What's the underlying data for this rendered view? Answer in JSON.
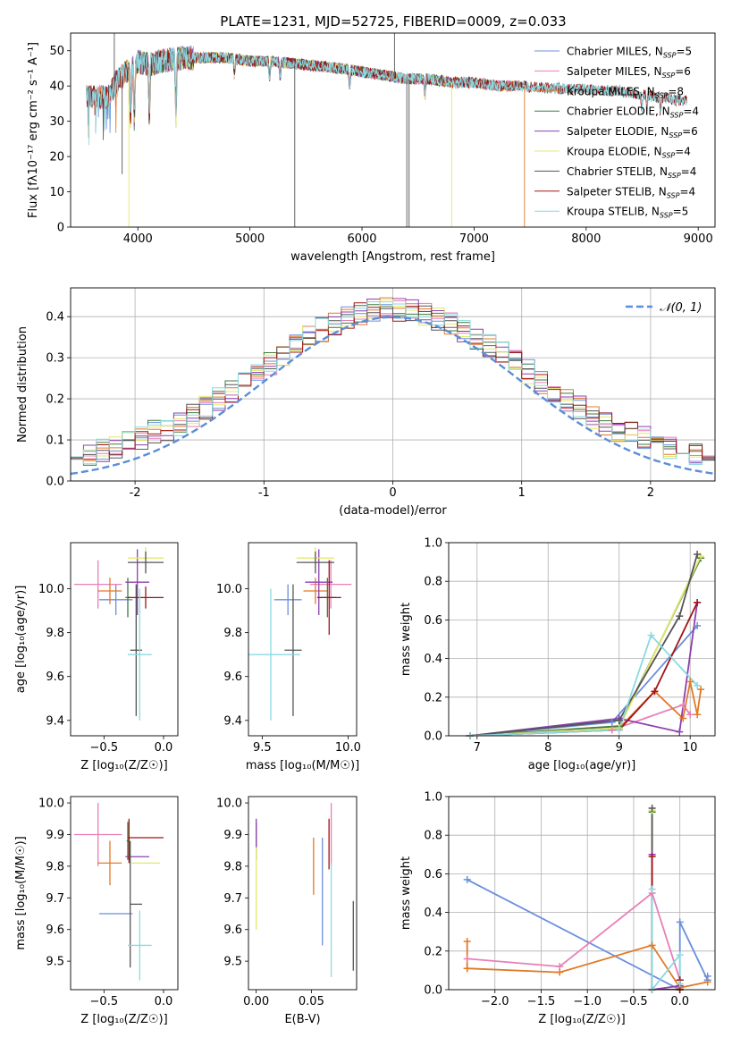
{
  "colors": {
    "cm": "#6a8fdb",
    "sm": "#e87fb6",
    "km": "#e17a28",
    "ce": "#3f7a3f",
    "se": "#8e3fae",
    "ke": "#e4e86b",
    "cs": "#555555",
    "ss": "#a01515",
    "ks": "#8ad9e0",
    "gauss": "#5b8ed8"
  },
  "figure_title": "PLATE=1231, MJD=52725, FIBERID=0009, z=0.033",
  "chart_data": [
    {
      "type": "line",
      "id": "spectrum",
      "xlabel": "wavelength [Angstrom, rest frame]",
      "ylabel": "Flux [fλ10⁻¹⁷ erg cm⁻² s⁻¹ A⁻¹]",
      "xlim": [
        3400,
        9150
      ],
      "ylim": [
        0,
        55
      ],
      "xticks": [
        4000,
        5000,
        6000,
        7000,
        8000,
        9000
      ],
      "yticks": [
        0,
        10,
        20,
        30,
        40,
        50
      ],
      "grid": false,
      "legend_position": "top-right",
      "continuum": {
        "x": [
          3750,
          3800,
          3900,
          4000,
          4100,
          4200,
          4400,
          4600,
          4800,
          5000,
          5200,
          5500,
          5800,
          6000,
          6200,
          6400,
          6600,
          6800,
          7000,
          7200,
          7400,
          7600,
          8000,
          8300,
          8600,
          8800,
          9000
        ],
        "y": [
          37,
          41,
          44,
          47,
          46,
          47,
          48,
          48,
          48,
          47,
          47,
          46,
          45,
          44,
          43,
          42,
          42,
          41,
          41,
          40,
          40,
          39.5,
          39,
          38.5,
          37,
          36,
          35.5
        ]
      },
      "series": [
        {
          "name": "Chabrier MILES, N_SSP=5",
          "label_text": "Chabrier MILES, N",
          "label_sub": "SSP",
          "label_tail": "=5",
          "color_key": "cm",
          "x_range": [
            3540,
            7400
          ]
        },
        {
          "name": "Salpeter MILES, N_SSP=6",
          "label_text": "Salpeter MILES, N",
          "label_sub": "SSP",
          "label_tail": "=6",
          "color_key": "sm",
          "x_range": [
            3540,
            7400
          ]
        },
        {
          "name": "Kroupa MILES, N_SSP=8",
          "label_text": "Kroupa MILES, N",
          "label_sub": "SSP",
          "label_tail": "=8",
          "color_key": "km",
          "x_range": [
            3540,
            7410
          ]
        },
        {
          "name": "Chabrier ELODIE, N_SSP=4",
          "label_text": "Chabrier ELODIE, N",
          "label_sub": "SSP",
          "label_tail": "=4",
          "color_key": "ce",
          "x_range": [
            3900,
            6790
          ]
        },
        {
          "name": "Salpeter ELODIE, N_SSP=6",
          "label_text": "Salpeter ELODIE, N",
          "label_sub": "SSP",
          "label_tail": "=6",
          "color_key": "se",
          "x_range": [
            3900,
            6790
          ]
        },
        {
          "name": "Kroupa ELODIE, N_SSP=4",
          "label_text": "Kroupa ELODIE, N",
          "label_sub": "SSP",
          "label_tail": "=4",
          "color_key": "ke",
          "x_range": [
            3900,
            6790
          ]
        },
        {
          "name": "Chabrier STELIB, N_SSP=4",
          "label_text": "Chabrier STELIB, N",
          "label_sub": "SSP",
          "label_tail": "=4",
          "color_key": "cs",
          "x_range": [
            3540,
            8900
          ]
        },
        {
          "name": "Salpeter STELIB, N_SSP=4",
          "label_text": "Salpeter STELIB, N",
          "label_sub": "SSP",
          "label_tail": "=4",
          "color_key": "ss",
          "x_range": [
            3540,
            8900
          ]
        },
        {
          "name": "Kroupa STELIB, N_SSP=5",
          "label_text": "Kroupa STELIB, N",
          "label_sub": "SSP",
          "label_tail": "=5",
          "color_key": "ks",
          "x_range": [
            3540,
            8900
          ]
        }
      ]
    },
    {
      "type": "histogram",
      "id": "residuals",
      "xlabel": "(data-model)/error",
      "ylabel": "Normed distribution",
      "xlim": [
        -2.5,
        2.5
      ],
      "ylim": [
        0,
        0.47
      ],
      "xticks": [
        -2,
        -1,
        0,
        1,
        2
      ],
      "yticks": [
        0.0,
        0.1,
        0.2,
        0.3,
        0.4
      ],
      "grid": true,
      "legend_position": "top-right",
      "bin_width": 0.1,
      "reference_curve": {
        "name": "𝒩(0, 1)",
        "type": "gaussian",
        "mean": 0,
        "sigma": 1
      },
      "series_color_keys": [
        "cm",
        "sm",
        "km",
        "ce",
        "se",
        "ke",
        "cs",
        "ss",
        "ks"
      ]
    },
    {
      "type": "errorbar",
      "id": "age-vs-Z",
      "xlabel": "Z [log₁₀(Z/Z☉)]",
      "ylabel": "age  [log₁₀(age/yr)]",
      "xlim": [
        -0.78,
        0.12
      ],
      "ylim": [
        9.33,
        10.21
      ],
      "xticks": [
        -0.5,
        0.0
      ],
      "xtick_labels": [
        "−0.5",
        "0.0"
      ],
      "yticks": [
        9.4,
        9.6,
        9.8,
        10.0
      ],
      "grid": false,
      "points": [
        {
          "color_key": "cm",
          "x": -0.4,
          "xerr": 0.14,
          "y": 9.95,
          "yerr": 0.07
        },
        {
          "color_key": "sm",
          "x": -0.55,
          "xerr": 0.2,
          "y": 10.02,
          "yerr": 0.11
        },
        {
          "color_key": "km",
          "x": -0.45,
          "xerr": 0.1,
          "y": 9.99,
          "yerr": 0.06
        },
        {
          "color_key": "ce",
          "x": -0.3,
          "xerr": 0.02,
          "y": 9.96,
          "yerr": 0.09
        },
        {
          "color_key": "se",
          "x": -0.22,
          "xerr": 0.1,
          "y": 10.03,
          "yerr": 0.15
        },
        {
          "color_key": "ke",
          "x": -0.15,
          "xerr": 0.15,
          "y": 10.14,
          "yerr": 0.05
        },
        {
          "color_key": "cs",
          "x": -0.15,
          "xerr": 0.15,
          "y": 10.12,
          "yerr": 0.05
        },
        {
          "color_key": "cs",
          "x": -0.23,
          "xerr": 0.05,
          "y": 9.72,
          "yerr": 0.3
        },
        {
          "color_key": "ss",
          "x": -0.15,
          "xerr": 0.15,
          "y": 9.96,
          "yerr": 0.05
        },
        {
          "color_key": "ks",
          "x": -0.2,
          "xerr": 0.1,
          "y": 9.7,
          "yerr": 0.3
        }
      ]
    },
    {
      "type": "errorbar",
      "id": "age-vs-mass",
      "xlabel": "mass [log₁₀(M/M☉)]",
      "xlim": [
        9.42,
        10.05
      ],
      "ylim": [
        9.33,
        10.21
      ],
      "xticks": [
        9.5,
        10.0
      ],
      "xtick_labels": [
        "9.5",
        "10.0"
      ],
      "yticks": [
        9.4,
        9.6,
        9.8,
        10.0
      ],
      "grid": false,
      "points": [
        {
          "color_key": "cm",
          "x": 9.65,
          "xerr": 0.08,
          "y": 9.95,
          "yerr": 0.07
        },
        {
          "color_key": "sm",
          "x": 9.9,
          "xerr": 0.12,
          "y": 10.02,
          "yerr": 0.11
        },
        {
          "color_key": "km",
          "x": 9.81,
          "xerr": 0.07,
          "y": 9.99,
          "yerr": 0.06
        },
        {
          "color_key": "ce",
          "x": 9.88,
          "xerr": 0.05,
          "y": 9.96,
          "yerr": 0.09
        },
        {
          "color_key": "se",
          "x": 9.83,
          "xerr": 0.08,
          "y": 10.03,
          "yerr": 0.15
        },
        {
          "color_key": "ke",
          "x": 9.81,
          "xerr": 0.11,
          "y": 10.14,
          "yerr": 0.05
        },
        {
          "color_key": "cs",
          "x": 9.81,
          "xerr": 0.11,
          "y": 10.12,
          "yerr": 0.05
        },
        {
          "color_key": "cs",
          "x": 9.68,
          "xerr": 0.05,
          "y": 9.72,
          "yerr": 0.3
        },
        {
          "color_key": "ss",
          "x": 9.89,
          "xerr": 0.07,
          "y": 9.96,
          "yerr": 0.17
        },
        {
          "color_key": "ks",
          "x": 9.55,
          "xerr": 0.17,
          "y": 9.7,
          "yerr": 0.3
        }
      ]
    },
    {
      "type": "line",
      "id": "weight-vs-age",
      "xlabel": "age  [log₁₀(age/yr)]",
      "ylabel": "mass weight",
      "xlim": [
        6.6,
        10.35
      ],
      "ylim": [
        0,
        1
      ],
      "xticks": [
        7,
        8,
        9,
        10
      ],
      "yticks": [
        0.0,
        0.2,
        0.4,
        0.6,
        0.8,
        1.0
      ],
      "grid": true,
      "series": [
        {
          "color_key": "cm",
          "x": [
            6.9,
            8.9,
            10.1
          ],
          "y": [
            0.0,
            0.07,
            0.57
          ]
        },
        {
          "color_key": "sm",
          "x": [
            6.9,
            8.9,
            9.9,
            10.0
          ],
          "y": [
            0.0,
            0.03,
            0.16,
            0.11
          ]
        },
        {
          "color_key": "km",
          "x": [
            6.9,
            9.0,
            9.5,
            9.9,
            10.0,
            10.1,
            10.15
          ],
          "y": [
            0.0,
            0.04,
            0.23,
            0.09,
            0.28,
            0.11,
            0.24
          ]
        },
        {
          "color_key": "ce",
          "x": [
            6.9,
            9.0,
            10.15
          ],
          "y": [
            0.0,
            0.05,
            0.92
          ]
        },
        {
          "color_key": "se",
          "x": [
            6.9,
            9.0,
            9.85,
            10.1
          ],
          "y": [
            0.0,
            0.09,
            0.02,
            0.69
          ]
        },
        {
          "color_key": "ke",
          "x": [
            6.9,
            9.0,
            10.15
          ],
          "y": [
            0.0,
            0.04,
            0.93
          ]
        },
        {
          "color_key": "cs",
          "x": [
            6.9,
            9.0,
            9.85,
            10.1
          ],
          "y": [
            0.0,
            0.08,
            0.62,
            0.94
          ]
        },
        {
          "color_key": "ss",
          "x": [
            6.9,
            9.0,
            9.5,
            10.1
          ],
          "y": [
            0.0,
            0.03,
            0.23,
            0.69
          ]
        },
        {
          "color_key": "ks",
          "x": [
            6.9,
            9.0,
            9.45,
            10.1
          ],
          "y": [
            0.0,
            0.03,
            0.52,
            0.26
          ]
        }
      ]
    },
    {
      "type": "errorbar",
      "id": "mass-vs-Z",
      "xlabel": "Z [log₁₀(Z/Z☉)]",
      "ylabel": "mass [log₁₀(M/M☉)]",
      "xlim": [
        -0.78,
        0.12
      ],
      "ylim": [
        9.41,
        10.02
      ],
      "xticks": [
        -0.5,
        0.0
      ],
      "xtick_labels": [
        "−0.5",
        "0.0"
      ],
      "yticks": [
        9.5,
        9.6,
        9.7,
        9.8,
        9.9,
        10.0
      ],
      "grid": false,
      "points": [
        {
          "color_key": "cm",
          "x": -0.4,
          "xerr": 0.14,
          "y": 9.65,
          "yerr": 0.0
        },
        {
          "color_key": "sm",
          "x": -0.55,
          "xerr": 0.2,
          "y": 9.9,
          "yerr": 0.1
        },
        {
          "color_key": "km",
          "x": -0.45,
          "xerr": 0.1,
          "y": 9.81,
          "yerr": 0.07
        },
        {
          "color_key": "ce",
          "x": -0.3,
          "xerr": 0.01,
          "y": 9.88,
          "yerr": 0.06
        },
        {
          "color_key": "se",
          "x": -0.22,
          "xerr": 0.1,
          "y": 9.83,
          "yerr": 0.0
        },
        {
          "color_key": "ke",
          "x": -0.15,
          "xerr": 0.12,
          "y": 9.81,
          "yerr": 0.0
        },
        {
          "color_key": "cs",
          "x": -0.23,
          "xerr": 0.05,
          "y": 9.68,
          "yerr": 0.0
        },
        {
          "color_key": "cs",
          "x": -0.28,
          "xerr": 0.0,
          "y": 9.68,
          "yerr": 0.2
        },
        {
          "color_key": "ss",
          "x": -0.15,
          "xerr": 0.15,
          "y": 9.89,
          "yerr": 0.0
        },
        {
          "color_key": "ss",
          "x": -0.29,
          "xerr": 0.0,
          "y": 9.88,
          "yerr": 0.07
        },
        {
          "color_key": "ks",
          "x": -0.2,
          "xerr": 0.1,
          "y": 9.55,
          "yerr": 0.11
        }
      ]
    },
    {
      "type": "errorbar",
      "id": "mass-vs-ebv",
      "xlabel": "E(B-V)",
      "xlim": [
        -0.007,
        0.091
      ],
      "ylim": [
        9.41,
        10.02
      ],
      "xticks": [
        0.0,
        0.05
      ],
      "xtick_labels": [
        "0.00",
        "0.05"
      ],
      "yticks": [
        9.5,
        9.6,
        9.7,
        9.8,
        9.9,
        10.0
      ],
      "grid": false,
      "points": [
        {
          "color_key": "cm",
          "x": 0.06,
          "y": 9.72,
          "yerr": 0.17
        },
        {
          "color_key": "sm",
          "x": 0.068,
          "y": 9.9,
          "yerr": 0.1
        },
        {
          "color_key": "km",
          "x": 0.052,
          "y": 9.8,
          "yerr": 0.09
        },
        {
          "color_key": "ce",
          "x": 0.0,
          "y": 9.88,
          "yerr": 0.06
        },
        {
          "color_key": "se",
          "x": 0.0,
          "y": 9.9,
          "yerr": 0.05
        },
        {
          "color_key": "ke",
          "x": 0.0,
          "y": 9.73,
          "yerr": 0.13
        },
        {
          "color_key": "cs",
          "x": 0.088,
          "y": 9.58,
          "yerr": 0.11
        },
        {
          "color_key": "ss",
          "x": 0.066,
          "y": 9.87,
          "yerr": 0.08
        },
        {
          "color_key": "ks",
          "x": 0.068,
          "y": 9.63,
          "yerr": 0.18
        }
      ]
    },
    {
      "type": "line",
      "id": "weight-vs-Z",
      "xlabel": "Z [log₁₀(Z/Z☉)]",
      "ylabel": "mass weight",
      "xlim": [
        -2.5,
        0.38
      ],
      "ylim": [
        0,
        1
      ],
      "xticks": [
        -2.0,
        -1.5,
        -1.0,
        -0.5,
        0.0
      ],
      "xtick_labels": [
        "−2.0",
        "−1.5",
        "−1.0",
        "−0.5",
        "0.0"
      ],
      "yticks": [
        0.0,
        0.2,
        0.4,
        0.6,
        0.8,
        1.0
      ],
      "grid": true,
      "series": [
        {
          "color_key": "cm",
          "x": [
            -2.3,
            0.0,
            0.0,
            0.3,
            0.3
          ],
          "y": [
            0.57,
            0.0,
            0.35,
            0.05,
            0.07
          ]
        },
        {
          "color_key": "sm",
          "x": [
            -2.3,
            -1.3,
            -0.3,
            0.0,
            0.0
          ],
          "y": [
            0.16,
            0.12,
            0.5,
            0.05,
            0.0
          ]
        },
        {
          "color_key": "km",
          "x": [
            -2.3,
            -2.3,
            -2.3,
            -1.3,
            -0.3,
            0.0,
            0.3
          ],
          "y": [
            0.25,
            0.11,
            0.11,
            0.09,
            0.23,
            0.01,
            0.04
          ]
        },
        {
          "color_key": "ce",
          "x": [
            -0.3,
            -0.3,
            0.0,
            0.0
          ],
          "y": [
            0.92,
            0.0,
            0.0,
            0.05
          ]
        },
        {
          "color_key": "se",
          "x": [
            -0.3,
            -0.3,
            0.0,
            0.0
          ],
          "y": [
            0.7,
            0.0,
            0.02,
            0.05
          ]
        },
        {
          "color_key": "ke",
          "x": [
            -0.3,
            -0.3,
            0.0,
            0.0
          ],
          "y": [
            0.93,
            0.0,
            0.0,
            0.05
          ]
        },
        {
          "color_key": "cs",
          "x": [
            -0.3,
            -0.3,
            0.0,
            0.0
          ],
          "y": [
            0.94,
            0.0,
            0.0,
            0.05
          ]
        },
        {
          "color_key": "ss",
          "x": [
            -0.3,
            -0.3,
            0.0,
            0.0
          ],
          "y": [
            0.69,
            0.0,
            0.0,
            0.05
          ]
        },
        {
          "color_key": "ks",
          "x": [
            -0.3,
            -0.3,
            0.0,
            0.0
          ],
          "y": [
            0.52,
            0.0,
            0.18,
            0.03
          ]
        }
      ]
    }
  ]
}
